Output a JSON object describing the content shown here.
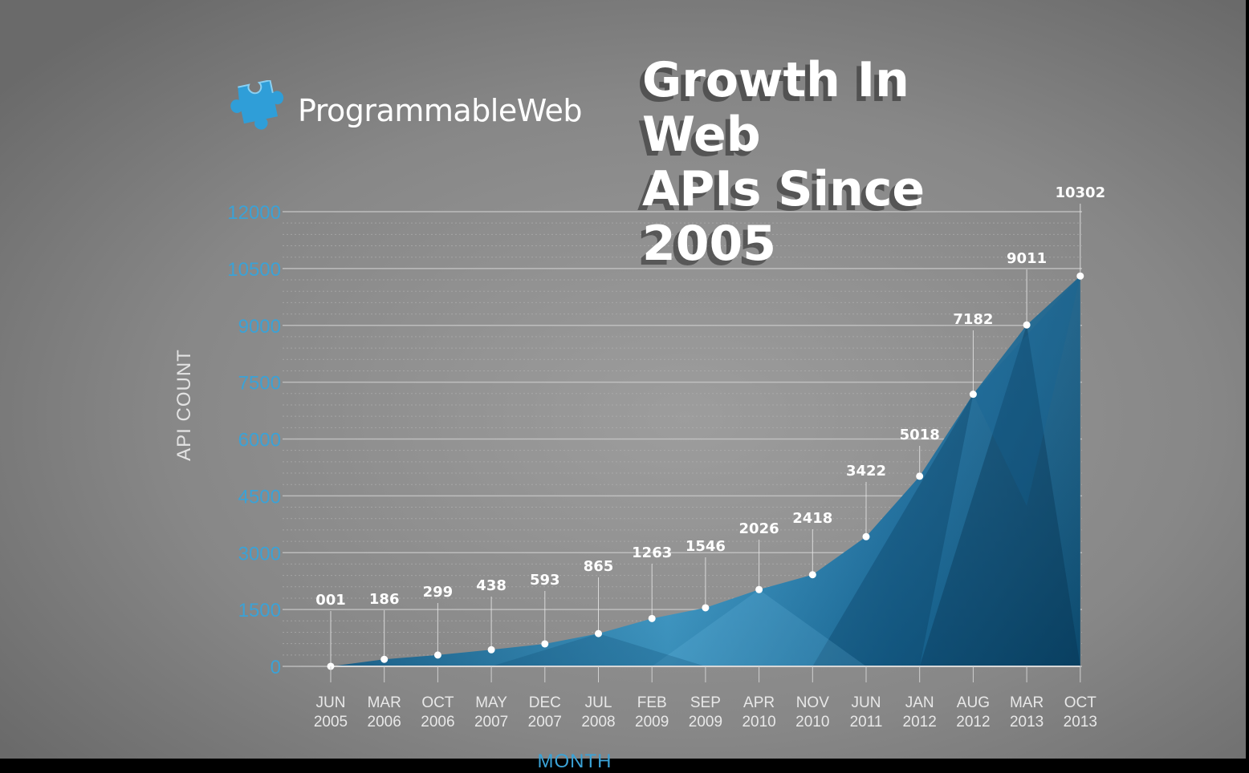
{
  "brand": {
    "name": "ProgrammableWeb",
    "logo_icon": "puzzle-piece-icon"
  },
  "title": {
    "line1": "Growth In Web",
    "line2": "APIs Since 2005"
  },
  "colors": {
    "accent": "#2f8ec4",
    "area_light": "#48b0e0",
    "area_dark": "#0b4e75",
    "tick_label": "#3ba2d6"
  },
  "chart_data": {
    "type": "area",
    "title": "Growth In Web APIs Since 2005",
    "xlabel": "MONTH",
    "ylabel": "API COUNT",
    "ylim": [
      0,
      12000
    ],
    "yticks": [
      0,
      1500,
      3000,
      4500,
      6000,
      7500,
      9000,
      10500,
      12000
    ],
    "grid": true,
    "categories": [
      [
        "JUN",
        "2005"
      ],
      [
        "MAR",
        "2006"
      ],
      [
        "OCT",
        "2006"
      ],
      [
        "MAY",
        "2007"
      ],
      [
        "DEC",
        "2007"
      ],
      [
        "JUL",
        "2008"
      ],
      [
        "FEB",
        "2009"
      ],
      [
        "SEP",
        "2009"
      ],
      [
        "APR",
        "2010"
      ],
      [
        "NOV",
        "2010"
      ],
      [
        "JUN",
        "2011"
      ],
      [
        "JAN",
        "2012"
      ],
      [
        "AUG",
        "2012"
      ],
      [
        "MAR",
        "2013"
      ],
      [
        "OCT",
        "2013"
      ]
    ],
    "values": [
      1,
      186,
      299,
      438,
      593,
      865,
      1263,
      1546,
      2026,
      2418,
      3422,
      5018,
      7182,
      9011,
      10302
    ],
    "data_labels": [
      "001",
      "186",
      "299",
      "438",
      "593",
      "865",
      "1263",
      "1546",
      "2026",
      "2418",
      "3422",
      "5018",
      "7182",
      "9011",
      "10302"
    ]
  }
}
